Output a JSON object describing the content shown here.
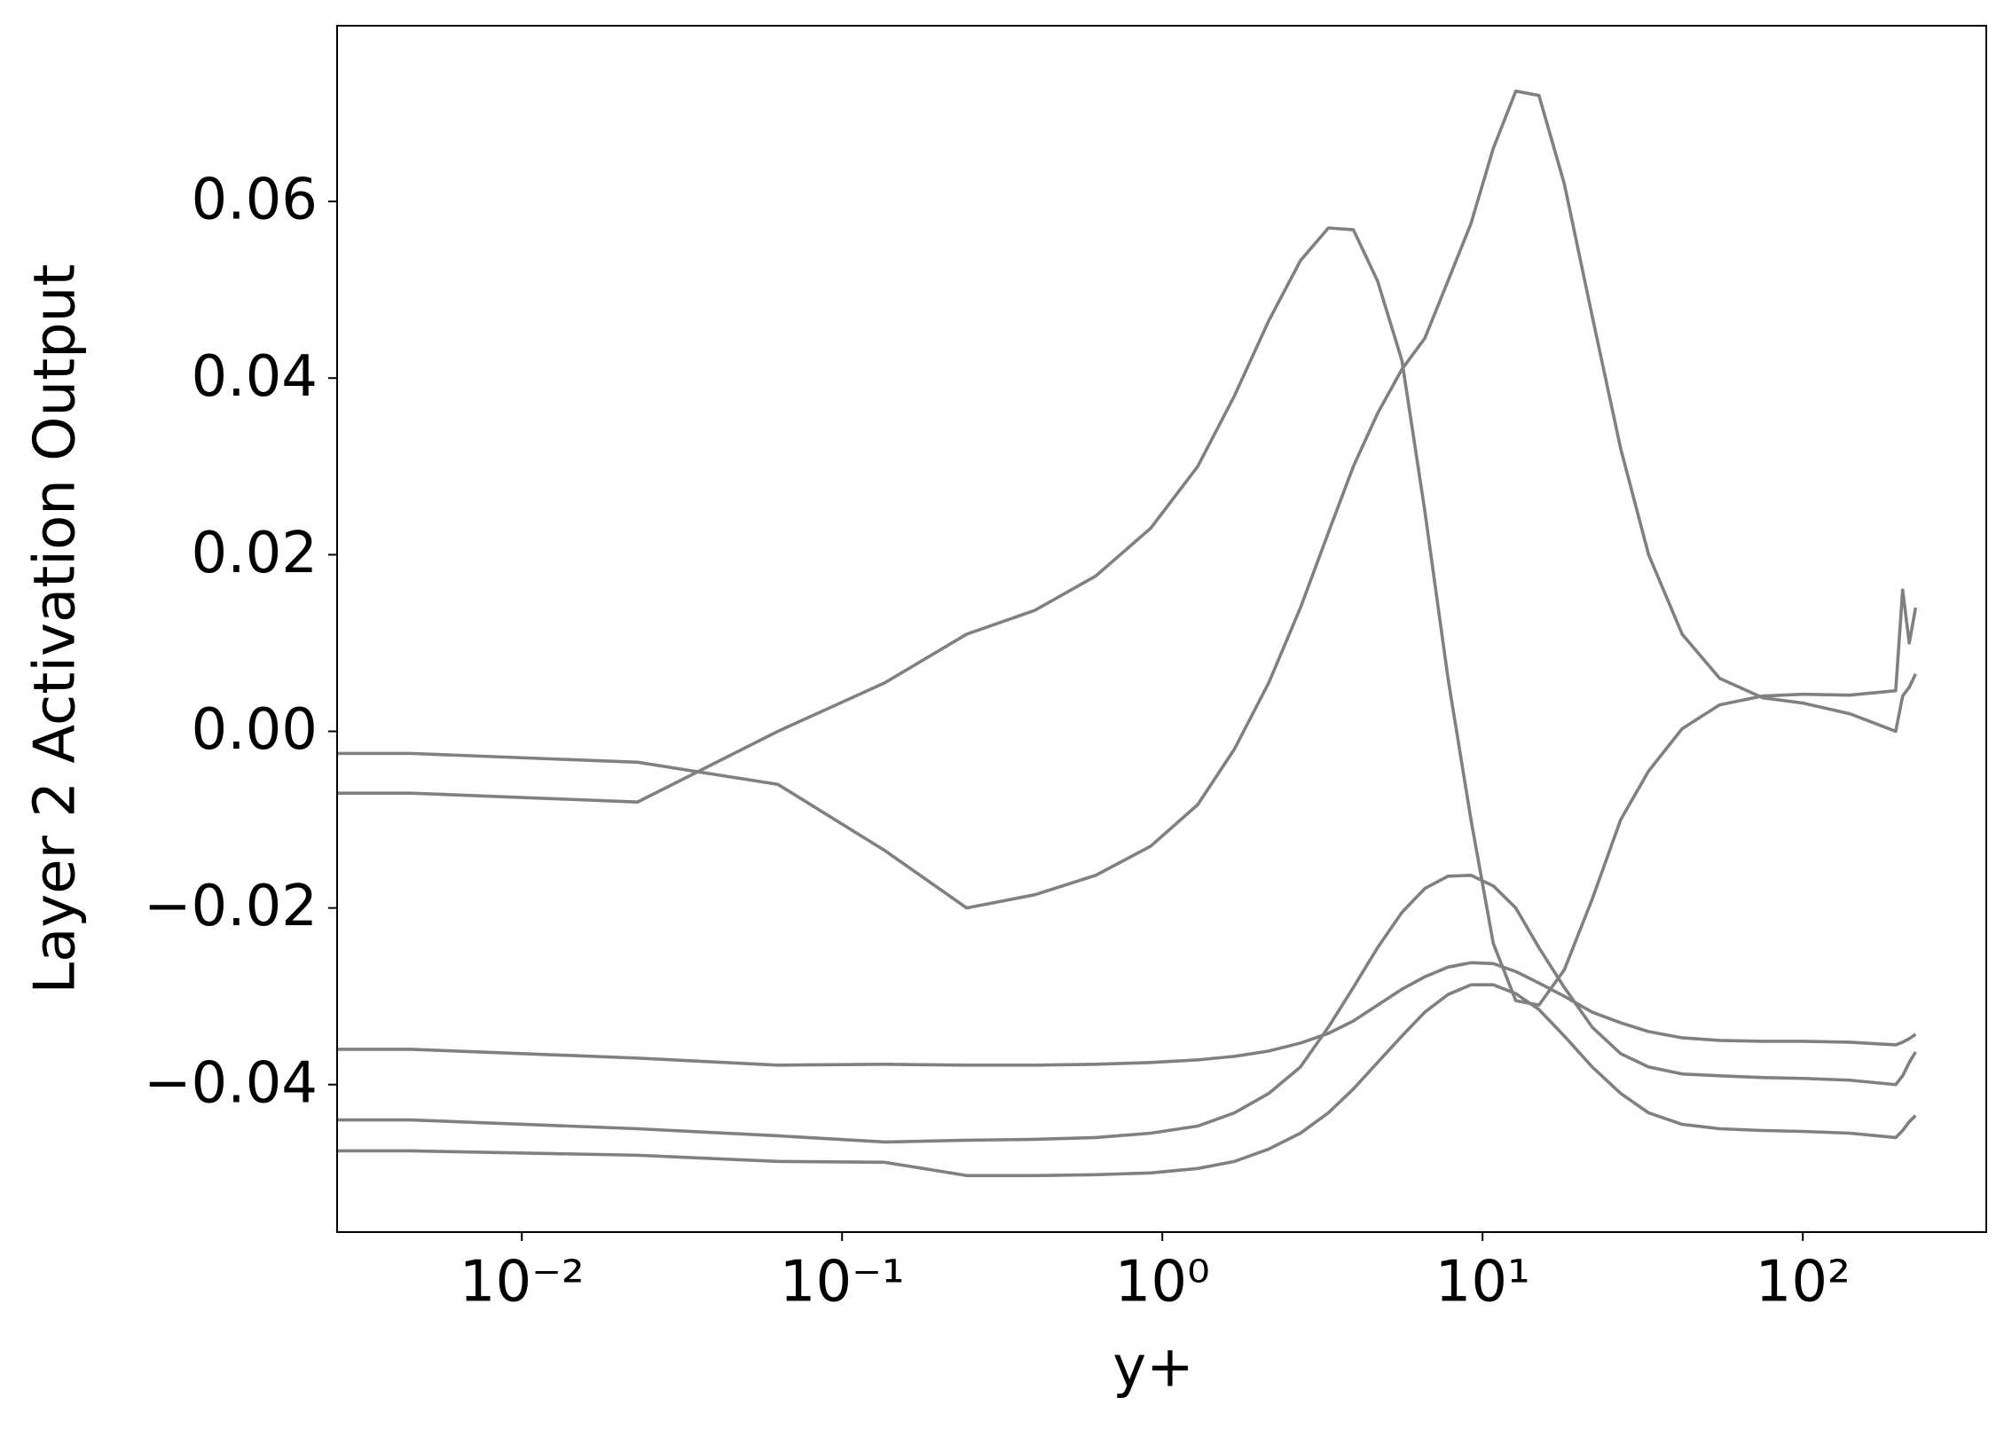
{
  "chart_data": {
    "type": "line",
    "xlabel": "y+",
    "ylabel": "Layer 2 Activation Output",
    "xscale": "log",
    "grid": false,
    "xlim": [
      0.00265,
      374
    ],
    "ylim": [
      -0.0567,
      0.0799
    ],
    "xticks": [
      {
        "value": 0.01,
        "label": "10⁻²"
      },
      {
        "value": 0.1,
        "label": "10⁻¹"
      },
      {
        "value": 1,
        "label": "10⁰"
      },
      {
        "value": 10,
        "label": "10¹"
      },
      {
        "value": 100,
        "label": "10²"
      }
    ],
    "yticks": [
      {
        "value": -0.04,
        "label": "−0.04"
      },
      {
        "value": -0.02,
        "label": "−0.02"
      },
      {
        "value": 0,
        "label": "0.00"
      },
      0.02,
      0.04,
      0.06
    ],
    "x": [
      0.00265,
      0.0045,
      0.023,
      0.063,
      0.136,
      0.245,
      0.4,
      0.62,
      0.92,
      1.29,
      1.68,
      2.15,
      2.7,
      3.3,
      3.95,
      4.7,
      5.6,
      6.6,
      7.8,
      9.2,
      10.8,
      12.7,
      15,
      18,
      22,
      27,
      33,
      42,
      55,
      75,
      100,
      140,
      195,
      205,
      215,
      225
    ],
    "series": [
      {
        "color": "#808080",
        "values": [
          -0.007,
          -0.007,
          -0.008,
          0.0,
          0.0055,
          0.011,
          0.0137,
          0.0176,
          0.023,
          0.03,
          0.038,
          0.0465,
          0.0533,
          0.057,
          0.0568,
          0.051,
          0.042,
          0.025,
          0.006,
          -0.01,
          -0.024,
          -0.0305,
          -0.031,
          -0.027,
          -0.019,
          -0.01,
          -0.0045,
          0.0003,
          0.003,
          0.004,
          0.0042,
          0.0041,
          0.0046,
          0.016,
          0.01,
          0.014
        ]
      },
      {
        "color": "#808080",
        "values": [
          -0.0025,
          -0.0025,
          -0.0035,
          -0.006,
          -0.0135,
          -0.02,
          -0.0185,
          -0.0163,
          -0.013,
          -0.0083,
          -0.002,
          0.0055,
          0.014,
          0.0225,
          0.03,
          0.036,
          0.041,
          0.0445,
          0.051,
          0.0575,
          0.066,
          0.0725,
          0.072,
          0.062,
          0.047,
          0.032,
          0.02,
          0.011,
          0.006,
          0.0038,
          0.0032,
          0.002,
          0.0,
          0.004,
          0.005,
          0.0065
        ]
      },
      {
        "color": "#808080",
        "values": [
          -0.036,
          -0.036,
          -0.037,
          -0.0378,
          -0.0377,
          -0.0378,
          -0.0378,
          -0.0377,
          -0.0375,
          -0.0372,
          -0.0368,
          -0.0362,
          -0.0353,
          -0.0342,
          -0.0328,
          -0.031,
          -0.0292,
          -0.0278,
          -0.0267,
          -0.0262,
          -0.0263,
          -0.0272,
          -0.0285,
          -0.03,
          -0.0318,
          -0.033,
          -0.034,
          -0.0347,
          -0.035,
          -0.0351,
          -0.0351,
          -0.0352,
          -0.0355,
          -0.0352,
          -0.0348,
          -0.0343
        ]
      },
      {
        "color": "#808080",
        "values": [
          -0.044,
          -0.044,
          -0.045,
          -0.0458,
          -0.0465,
          -0.0463,
          -0.0462,
          -0.046,
          -0.0455,
          -0.0447,
          -0.0432,
          -0.041,
          -0.038,
          -0.0335,
          -0.029,
          -0.0245,
          -0.0205,
          -0.0178,
          -0.0164,
          -0.0163,
          -0.0175,
          -0.02,
          -0.0245,
          -0.029,
          -0.0335,
          -0.0365,
          -0.038,
          -0.0388,
          -0.039,
          -0.0392,
          -0.0393,
          -0.0395,
          -0.04,
          -0.039,
          -0.0375,
          -0.0363
        ]
      },
      {
        "color": "#808080",
        "values": [
          -0.0475,
          -0.0475,
          -0.048,
          -0.0487,
          -0.0488,
          -0.0503,
          -0.0503,
          -0.0502,
          -0.05,
          -0.0495,
          -0.0487,
          -0.0473,
          -0.0455,
          -0.0432,
          -0.0405,
          -0.0375,
          -0.0345,
          -0.0318,
          -0.0298,
          -0.0287,
          -0.0287,
          -0.0297,
          -0.0315,
          -0.0345,
          -0.038,
          -0.041,
          -0.0432,
          -0.0445,
          -0.045,
          -0.0452,
          -0.0453,
          -0.0455,
          -0.046,
          -0.0452,
          -0.0442,
          -0.0435
        ]
      }
    ]
  }
}
